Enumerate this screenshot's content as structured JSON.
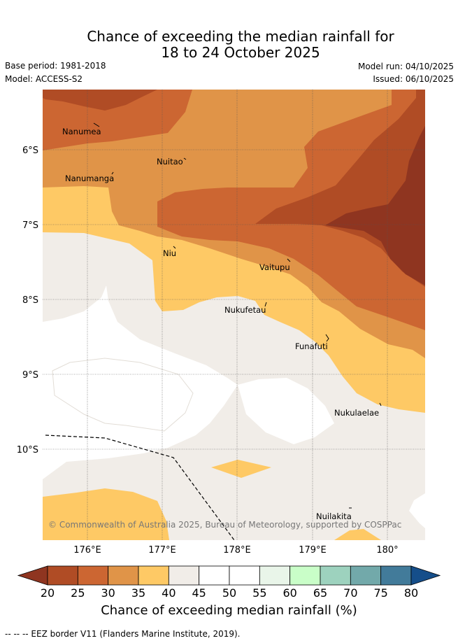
{
  "title": {
    "line1": "Chance of exceeding the median rainfall for",
    "line2": "18 to 24 October 2025"
  },
  "meta": {
    "base_period": "Base period: 1981-2018",
    "model": "Model: ACCESS-S2",
    "model_run": "Model run: 04/10/2025",
    "issued": "Issued: 06/10/2025"
  },
  "map": {
    "lat_labels": [
      "6°S",
      "7°S",
      "8°S",
      "9°S",
      "10°S"
    ],
    "lon_labels": [
      "176°E",
      "177°E",
      "178°E",
      "179°E",
      "180°"
    ],
    "places": [
      "Nanumea",
      "Nuitao",
      "Nanumanga",
      "Niu",
      "Vaitupu",
      "Nukufetau",
      "Funafuti",
      "Nukulaelae",
      "Nuilakita"
    ],
    "copyright": "© Commonwealth of Australia 2025, Bureau of Meteorology, supported by COSPPac"
  },
  "colorbar": {
    "ticks": [
      "20",
      "25",
      "30",
      "35",
      "40",
      "45",
      "50",
      "55",
      "60",
      "65",
      "70",
      "75",
      "80"
    ],
    "colors": [
      "#8f3520",
      "#b04c25",
      "#cc6632",
      "#e09448",
      "#fec965",
      "#f1ede8",
      "#ffffff",
      "#ffffff",
      "#e9f5e9",
      "#c9fec8",
      "#9dd2be",
      "#72a9aa",
      "#427b9a",
      "#154e8a"
    ],
    "label": "Chance of exceeding median rainfall (%)"
  },
  "footer": {
    "legend": "--  --  -- EEZ border V11 (Flanders Marine Institute, 2019)."
  }
}
